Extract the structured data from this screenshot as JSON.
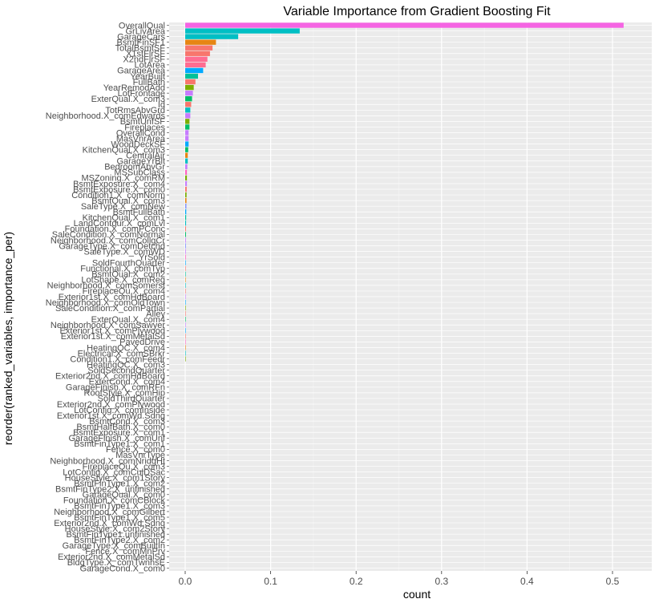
{
  "chart_data": {
    "type": "bar",
    "orientation": "horizontal",
    "title": "Variable Importance from Gradient Boosting Fit",
    "xlabel": "count",
    "ylabel": "reorder(ranked_variables, importance_per)",
    "xlim": [
      0,
      0.53
    ],
    "x_ticks": [
      "0.0",
      "0.1",
      "0.2",
      "0.3",
      "0.4",
      "0.5"
    ],
    "x_tick_values": [
      0,
      0.1,
      0.2,
      0.3,
      0.4,
      0.5
    ],
    "grid": true,
    "legend": "none",
    "panel_color": "#ebebeb",
    "palette": [
      "#f564e3",
      "#00bfc4",
      "#00bfc4",
      "#e68613",
      "#f8766d",
      "#f8766d",
      "#ff6c91",
      "#ff6c91",
      "#00a9ff",
      "#00c19a",
      "#f8766d",
      "#7cae00",
      "#c77cff",
      "#c77cff",
      "#00be67"
    ],
    "categories": [
      "OverallQual",
      "GrLivArea",
      "GarageCars",
      "BsmtFinSF1",
      "TotalBsmtSF",
      "X1stFlrSF",
      "X2ndFlrSF",
      "LotArea",
      "GarageArea",
      "YearBuilt",
      "FullBath",
      "YearRemodAdd",
      "LotFrontage",
      "ExterQual.X_com3",
      "Id",
      "TotRmsAbvGrd",
      "Neighborhood.X_comEdwards",
      "BsmtUnfSF",
      "Fireplaces",
      "OverallCond",
      "MasVnrArea",
      "WoodDeckSF",
      "KitchenQual.X_com3",
      "CentralAir",
      "GarageYrBlt",
      "BedroomAbvGr",
      "MSSubClass",
      "MSZoning.X_comRM",
      "BsmtExposure.X_com4",
      "BsmtExposure.X_com0",
      "Condition1.X_comNorm",
      "BsmtQual.X_com3",
      "SaleType.X_comNew",
      "BsmtFullBath",
      "KitchenQual.X_com1",
      "LandContour.X_comLvl",
      "Foundation.X_comPConc",
      "SaleCondition.X_comNormal",
      "Neighborhood.X_comCollgCr",
      "GarageType.X_comDetchd",
      "SaleType.X_comWD",
      "YrSold",
      "SoldFourthQuarter",
      "Functional.X_comTyp",
      "BsmtQual.X_com2",
      "LotShape.X_comReg",
      "Neighborhood.X_comSomerst",
      "FireplaceQu.X_com4",
      "Exterior1st.X_comHdBoard",
      "Neighborhood.X_comOldTown",
      "SaleCondition.X_comPartial",
      "Alley",
      "ExterQual.X_com4",
      "Neighborhood.X_comSawyer",
      "Exterior1st.X_comPlywood",
      "Exterior1st.X_comMetalSd",
      "PavedDrive",
      "HeatingQC.X_com4",
      "Electrical.X_comSBrkr",
      "Condition1.X_comFeedr",
      "HeatingQC.X_com3",
      "SoldSecondQuarter",
      "Exterior2nd.X_comHdBoard",
      "ExterCond.X_com4",
      "GarageFinish.X_comRFn",
      "RoofStyle.X_comHip",
      "SoldThirdQuarter",
      "Exterior2nd.X_comPlywood",
      "LotConfig.X_comInside",
      "Exterior1st.X_comWd.Sdng",
      "BsmtCond.X_com3",
      "BsmtHalfBath.X_com0",
      "BsmtExposure.X_com1",
      "GarageFinish.X_comUnf",
      "BsmtFinType1.X_com1",
      "Fence.X_com0",
      "MasVnrType",
      "Neighborhood.X_comNridgHt",
      "FireplaceQu.X_com3",
      "LotConfig.X_comCulDSac",
      "HouseStyle.X_com1Story",
      "BsmtFinType1.X_com2",
      "BsmtFinType2.X_unfinished",
      "GarageQual.X_com0",
      "Foundation.X_comCBlock",
      "BsmtFinType1.X_com3",
      "Neighborhood.X_comGilbert",
      "BsmtFinType1.X_com5",
      "Exterior2nd.X_comWd.Sdng",
      "HouseStyle.X_com2Story",
      "BsmtFinType1.unfinished",
      "BsmtFinType2.X_com2",
      "GarageType.X_comBuiltIn",
      "Fence.X_comMnPrv",
      "Exterior2nd.X_comMetalSd",
      "BldgType.X_comTwnhsE",
      "GarageCond.X_com0"
    ],
    "values": [
      0.513,
      0.134,
      0.062,
      0.036,
      0.032,
      0.029,
      0.026,
      0.024,
      0.021,
      0.015,
      0.012,
      0.01,
      0.009,
      0.008,
      0.007,
      0.006,
      0.006,
      0.005,
      0.005,
      0.004,
      0.004,
      0.004,
      0.0035,
      0.003,
      0.003,
      0.0025,
      0.002,
      0.002,
      0.002,
      0.0018,
      0.0016,
      0.0015,
      0.0014,
      0.0012,
      0.0011,
      0.001,
      0.0009,
      0.0009,
      0.0008,
      0.0008,
      0.0007,
      0.0007,
      0.0006,
      0.0006,
      0.0005,
      0.0005,
      0.0003,
      0.0003,
      0.0002,
      0.0002,
      0.0002,
      0.0001,
      0.0001,
      0.0001,
      0.0001,
      0.0001,
      0.0001,
      0.0001,
      0.0001,
      0.0001,
      0,
      0,
      0,
      0,
      0,
      0,
      0,
      0,
      0,
      0,
      0,
      0,
      0,
      0,
      0,
      0,
      0,
      0,
      0,
      0,
      0,
      0,
      0,
      0,
      0,
      0,
      0,
      0,
      0,
      0,
      0,
      0,
      0,
      0,
      0,
      0,
      0
    ],
    "colors": [
      "#f564e3",
      "#00bfc4",
      "#00bfc4",
      "#e68613",
      "#f8766d",
      "#f8766d",
      "#ff6c91",
      "#ff6c91",
      "#00a9ff",
      "#00c19a",
      "#f8766d",
      "#7cae00",
      "#c77cff",
      "#00be67",
      "#f8766d",
      "#00bfc4",
      "#c77cff",
      "#7cae00",
      "#00be67",
      "#c77cff",
      "#c77cff",
      "#00a9ff",
      "#00be67",
      "#e68613",
      "#00bfc4",
      "#c77cff",
      "#ff61c3",
      "#7cae00",
      "#c77cff",
      "#f8766d",
      "#7cae00",
      "#e68613",
      "#8494ff",
      "#00a9ff",
      "#00c19a",
      "#00bfc4",
      "#f8766d",
      "#00be67",
      "#c77cff",
      "#8494ff",
      "#c77cff",
      "#ff61c3",
      "#00a9ff",
      "#f8766d",
      "#00c19a",
      "#e68613",
      "#00bfc4",
      "#f8766d",
      "#c77cff",
      "#00a9ff",
      "#7cae00",
      "#f8766d",
      "#00be67",
      "#c77cff",
      "#00a9ff",
      "#f8766d",
      "#ff61c3",
      "#e68613",
      "#00bfc4",
      "#7cae00",
      "#f8766d",
      "#f8766d",
      "#f8766d",
      "#f8766d",
      "#f8766d",
      "#f8766d",
      "#f8766d",
      "#f8766d",
      "#f8766d",
      "#f8766d",
      "#f8766d",
      "#f8766d",
      "#f8766d",
      "#f8766d",
      "#f8766d",
      "#f8766d",
      "#f8766d",
      "#f8766d",
      "#f8766d",
      "#f8766d",
      "#f8766d",
      "#f8766d",
      "#f8766d",
      "#f8766d",
      "#f8766d",
      "#f8766d",
      "#f8766d",
      "#f8766d",
      "#f8766d",
      "#f8766d",
      "#f8766d",
      "#f8766d",
      "#f8766d",
      "#f8766d",
      "#f8766d",
      "#f8766d",
      "#f8766d"
    ]
  }
}
